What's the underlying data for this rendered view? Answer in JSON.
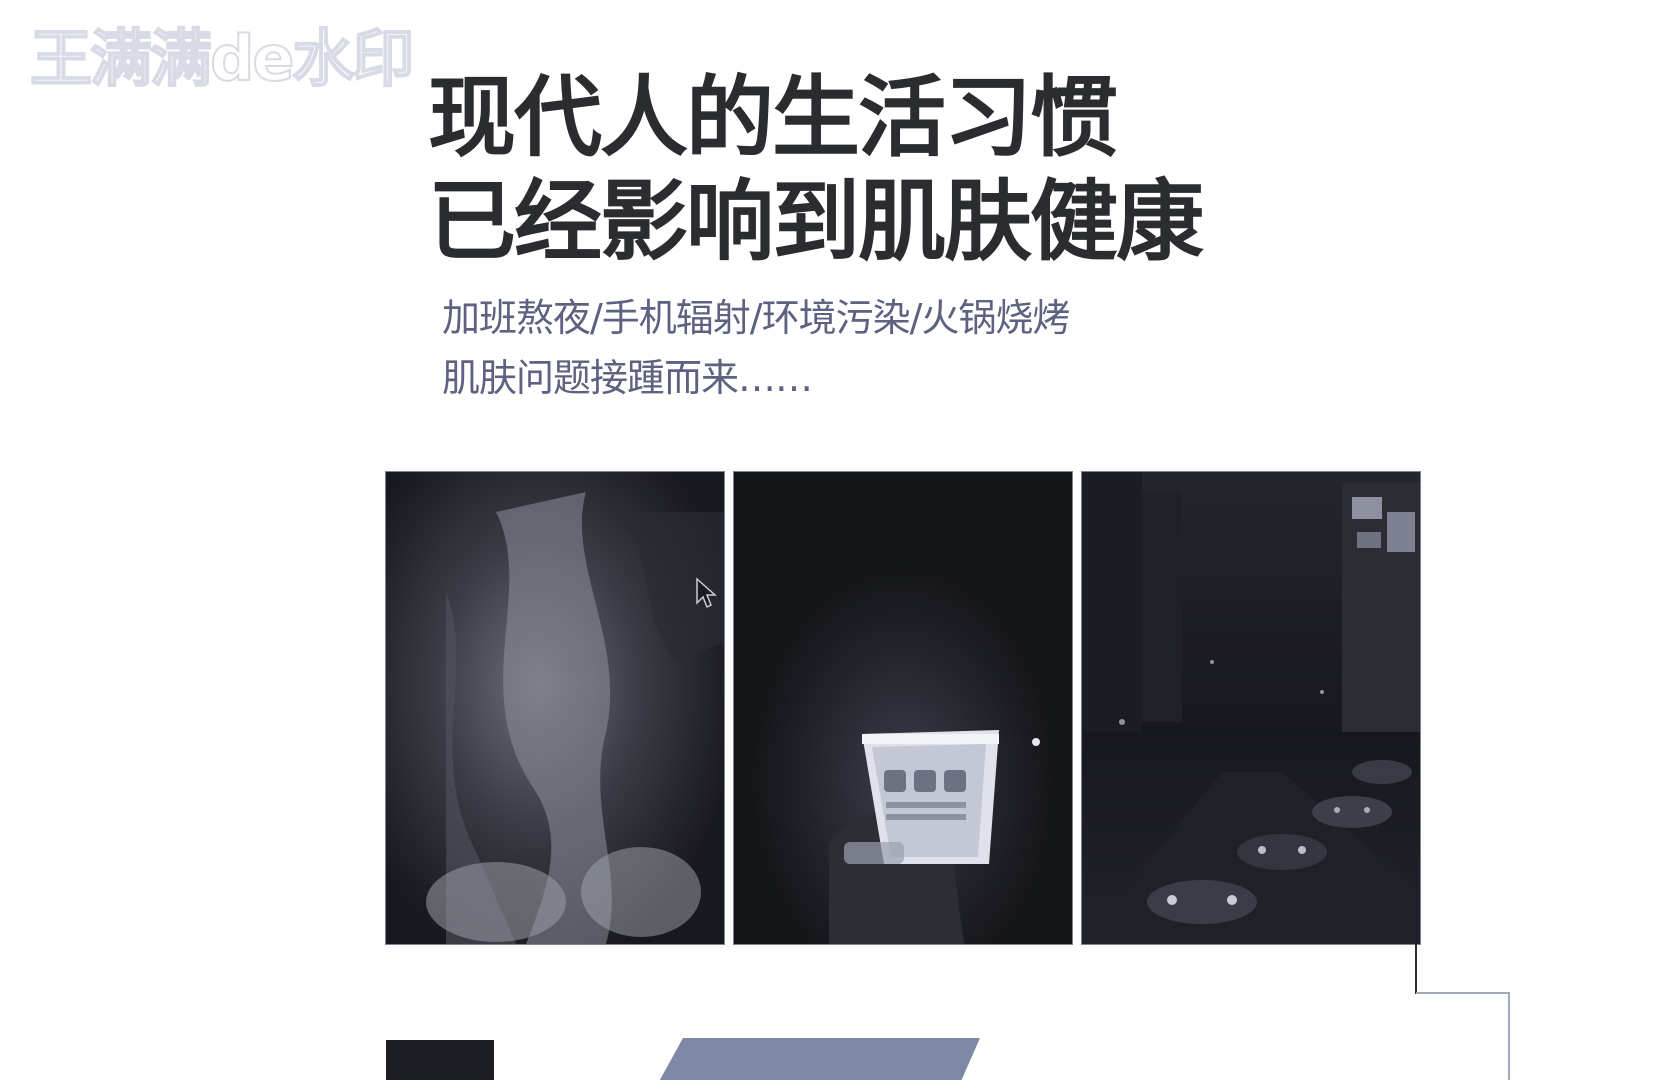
{
  "watermark": {
    "text": "王满满de水印"
  },
  "headline": {
    "line1": "现代人的生活习惯",
    "line2": "已经影响到肌肤健康"
  },
  "subline": {
    "line1": "加班熬夜/手机辐射/环境污染/火锅烧烤",
    "line2": "肌肤问题接踵而来……"
  },
  "photos": [
    {
      "name": "late-night-work-photo"
    },
    {
      "name": "phone-radiation-photo"
    },
    {
      "name": "city-traffic-photo"
    }
  ],
  "colors": {
    "headline": "#2b2c30",
    "subline": "#5c6280",
    "photo_bg": "#17181d",
    "accent_bar": "#7e87a3"
  }
}
